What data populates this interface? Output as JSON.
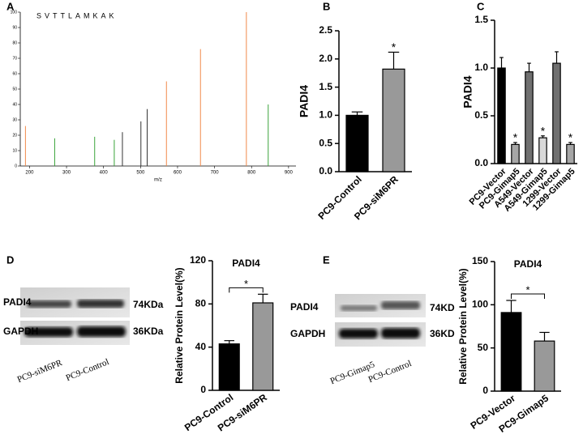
{
  "panel_labels": [
    "A",
    "B",
    "C",
    "D",
    "E"
  ],
  "blots": [
    {
      "rows": [
        "PADI4",
        "GAPDH"
      ],
      "sizes": [
        "74KDa",
        "36KDa"
      ],
      "lanes": [
        "PC9-siM6PR",
        "PC9-Control"
      ]
    },
    {
      "rows": [
        "PADI4",
        "GAPDH"
      ],
      "sizes": [
        "74KD",
        "36KD"
      ],
      "lanes": [
        "PC9-Gimap5",
        "PC9-Control"
      ]
    }
  ],
  "chart_data": [
    {
      "type": "spectrum",
      "peptide": "SVTTLAMKAK",
      "x_label": "m/z",
      "x": [
        189,
        268,
        376,
        429,
        451,
        501,
        518,
        570,
        662,
        786,
        845
      ],
      "values": [
        26,
        18,
        19,
        17,
        22,
        29,
        37,
        55,
        76,
        100,
        40
      ],
      "colors": [
        "#f08a4b",
        "#3aa43a",
        "#3aa43a",
        "#3aa43a",
        "#333333",
        "#333333",
        "#333333",
        "#f08a4b",
        "#f08a4b",
        "#f08a4b",
        "#3aa43a"
      ],
      "xlim": [
        175,
        920
      ],
      "ylim": [
        0,
        100
      ],
      "xticks": [
        200,
        300,
        400,
        500,
        600,
        700,
        800,
        900
      ],
      "yticks": [
        0,
        10,
        20,
        30,
        40,
        50,
        60,
        70,
        80,
        90,
        100
      ]
    },
    {
      "type": "bar",
      "y_label": "PADI4",
      "categories": [
        "PC9-Control",
        "PC9-siM6PR"
      ],
      "values": [
        1.0,
        1.82
      ],
      "errors": [
        0.06,
        0.3
      ],
      "colors": [
        "#000000",
        "#999999"
      ],
      "annotations": [
        null,
        "*"
      ],
      "ylim": [
        0,
        2.5
      ],
      "yticks": [
        {
          "value": 0,
          "label": "0.0"
        },
        0.5,
        {
          "value": 1,
          "label": "1.0"
        },
        1.5,
        {
          "value": 2,
          "label": "2.0"
        },
        2.5
      ]
    },
    {
      "type": "bar",
      "y_label": "PADI4",
      "categories": [
        "PC9-Vector",
        "PC9-Gimap5",
        "A549-Vector",
        "A549-Gimap5",
        "1299-Vector",
        "1299-Gimap5"
      ],
      "values": [
        1.0,
        0.2,
        0.96,
        0.27,
        1.05,
        0.2
      ],
      "errors": [
        0.11,
        0.02,
        0.09,
        0.02,
        0.12,
        0.02
      ],
      "colors": [
        "#000000",
        "#a6a6a6",
        "#707070",
        "#d9d9d9",
        "#707070",
        "#a6a6a6"
      ],
      "annotations": [
        null,
        "*",
        null,
        "*",
        null,
        "*"
      ],
      "ylim": [
        0,
        1.5
      ],
      "yticks": [
        {
          "value": 0,
          "label": "0.0"
        },
        0.5,
        {
          "value": 1,
          "label": "1.0"
        },
        1.5
      ]
    },
    {
      "type": "bar",
      "title": "PADI4",
      "y_label": "Relative Protein Level(%)",
      "categories": [
        "PC9-Control",
        "PC9-siM6PR"
      ],
      "values": [
        43,
        81
      ],
      "errors": [
        3,
        8
      ],
      "colors": [
        "#000000",
        "#999999"
      ],
      "bracket": "*",
      "ylim": [
        0,
        120
      ],
      "yticks": [
        0,
        40,
        80,
        120
      ]
    },
    {
      "type": "bar",
      "title": "PADI4",
      "y_label": "Relative Protein Level(%)",
      "categories": [
        "PC9-Vector",
        "PC9-Gimap5"
      ],
      "values": [
        91,
        58
      ],
      "errors": [
        14,
        10
      ],
      "colors": [
        "#000000",
        "#999999"
      ],
      "bracket": "*",
      "ylim": [
        0,
        150
      ],
      "yticks": [
        0,
        50,
        100,
        150
      ]
    }
  ]
}
